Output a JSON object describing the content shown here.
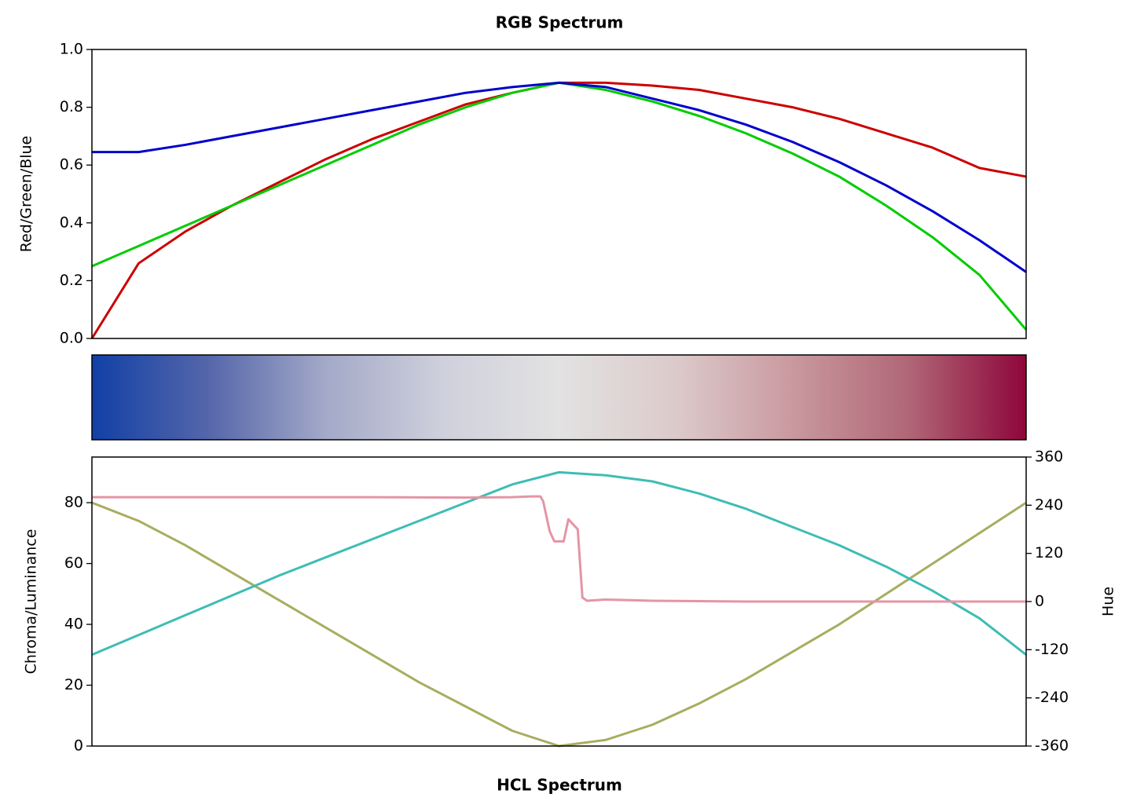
{
  "chart_data": [
    {
      "type": "line",
      "title": "RGB Spectrum",
      "ylabel": "Red/Green/Blue",
      "x": [
        0,
        0.05,
        0.1,
        0.15,
        0.2,
        0.25,
        0.3,
        0.35,
        0.4,
        0.45,
        0.5,
        0.55,
        0.6,
        0.65,
        0.7,
        0.75,
        0.8,
        0.85,
        0.9,
        0.95,
        1
      ],
      "xlim": [
        0,
        1
      ],
      "ylim": [
        0,
        1
      ],
      "yticks": [
        {
          "value": 0,
          "label": "0.0"
        },
        0.2,
        0.4,
        0.6,
        0.8,
        {
          "value": 1,
          "label": "1.0"
        }
      ],
      "series": [
        {
          "name": "Red",
          "color": "#cc0000",
          "values": [
            0,
            0.26,
            0.37,
            0.46,
            0.54,
            0.62,
            0.69,
            0.75,
            0.81,
            0.85,
            0.885,
            0.885,
            0.875,
            0.86,
            0.83,
            0.8,
            0.76,
            0.71,
            0.66,
            0.59,
            0.56
          ]
        },
        {
          "name": "Green",
          "color": "#00cc00",
          "values": [
            0.25,
            0.32,
            0.39,
            0.46,
            0.53,
            0.6,
            0.67,
            0.74,
            0.8,
            0.85,
            0.885,
            0.86,
            0.82,
            0.77,
            0.71,
            0.64,
            0.56,
            0.46,
            0.35,
            0.22,
            0.03
          ]
        },
        {
          "name": "Blue",
          "color": "#0000cc",
          "values": [
            0.645,
            0.645,
            0.67,
            0.7,
            0.73,
            0.76,
            0.79,
            0.82,
            0.85,
            0.87,
            0.885,
            0.87,
            0.83,
            0.79,
            0.74,
            0.68,
            0.61,
            0.53,
            0.44,
            0.34,
            0.23
          ]
        }
      ]
    },
    {
      "type": "colorbar",
      "colors": [
        "#1140a6",
        "#5566aa",
        "#a3a9c8",
        "#cfd0dc",
        "#e2e2e2",
        "#dccacb",
        "#c9999f",
        "#b06676",
        "#8e063b"
      ]
    },
    {
      "type": "line",
      "title": "HCL Spectrum",
      "ylabel": "Chroma/Luminance",
      "y2label": "Hue",
      "x": [
        0,
        0.05,
        0.1,
        0.15,
        0.2,
        0.25,
        0.3,
        0.35,
        0.4,
        0.45,
        0.5,
        0.55,
        0.6,
        0.65,
        0.7,
        0.75,
        0.8,
        0.85,
        0.9,
        0.95,
        1
      ],
      "xlim": [
        0,
        1
      ],
      "ylim": [
        0,
        95
      ],
      "yticks": [
        0,
        20,
        40,
        60,
        80
      ],
      "y2lim": [
        -360,
        360
      ],
      "y2ticks": [
        -360,
        -240,
        -120,
        0,
        120,
        240,
        360
      ],
      "series": [
        {
          "name": "Chroma",
          "color": "#a8ad60",
          "values": [
            80,
            74,
            66,
            57,
            48,
            39,
            30,
            21,
            13,
            5,
            0,
            2,
            7,
            14,
            22,
            31,
            40,
            50,
            60,
            70,
            80
          ]
        },
        {
          "name": "Luminance",
          "color": "#3dbdb5",
          "values": [
            30,
            36.5,
            43,
            49.5,
            56,
            62,
            68,
            74,
            80,
            86,
            90,
            89,
            87,
            83,
            78,
            72,
            66,
            59,
            51,
            42,
            30
          ]
        },
        {
          "name": "Hue",
          "color": "#e495a5",
          "axis": "y2",
          "x": [
            0,
            0.1,
            0.2,
            0.3,
            0.4,
            0.45,
            0.47,
            0.48,
            0.483,
            0.49,
            0.495,
            0.5,
            0.505,
            0.51,
            0.52,
            0.525,
            0.53,
            0.55,
            0.6,
            0.7,
            0.8,
            0.9,
            1
          ],
          "values": [
            260,
            260,
            260,
            260,
            259,
            260,
            262,
            262,
            250,
            175,
            150,
            150,
            150,
            205,
            180,
            10,
            2,
            5,
            2,
            0,
            0,
            0,
            0
          ]
        }
      ]
    }
  ]
}
